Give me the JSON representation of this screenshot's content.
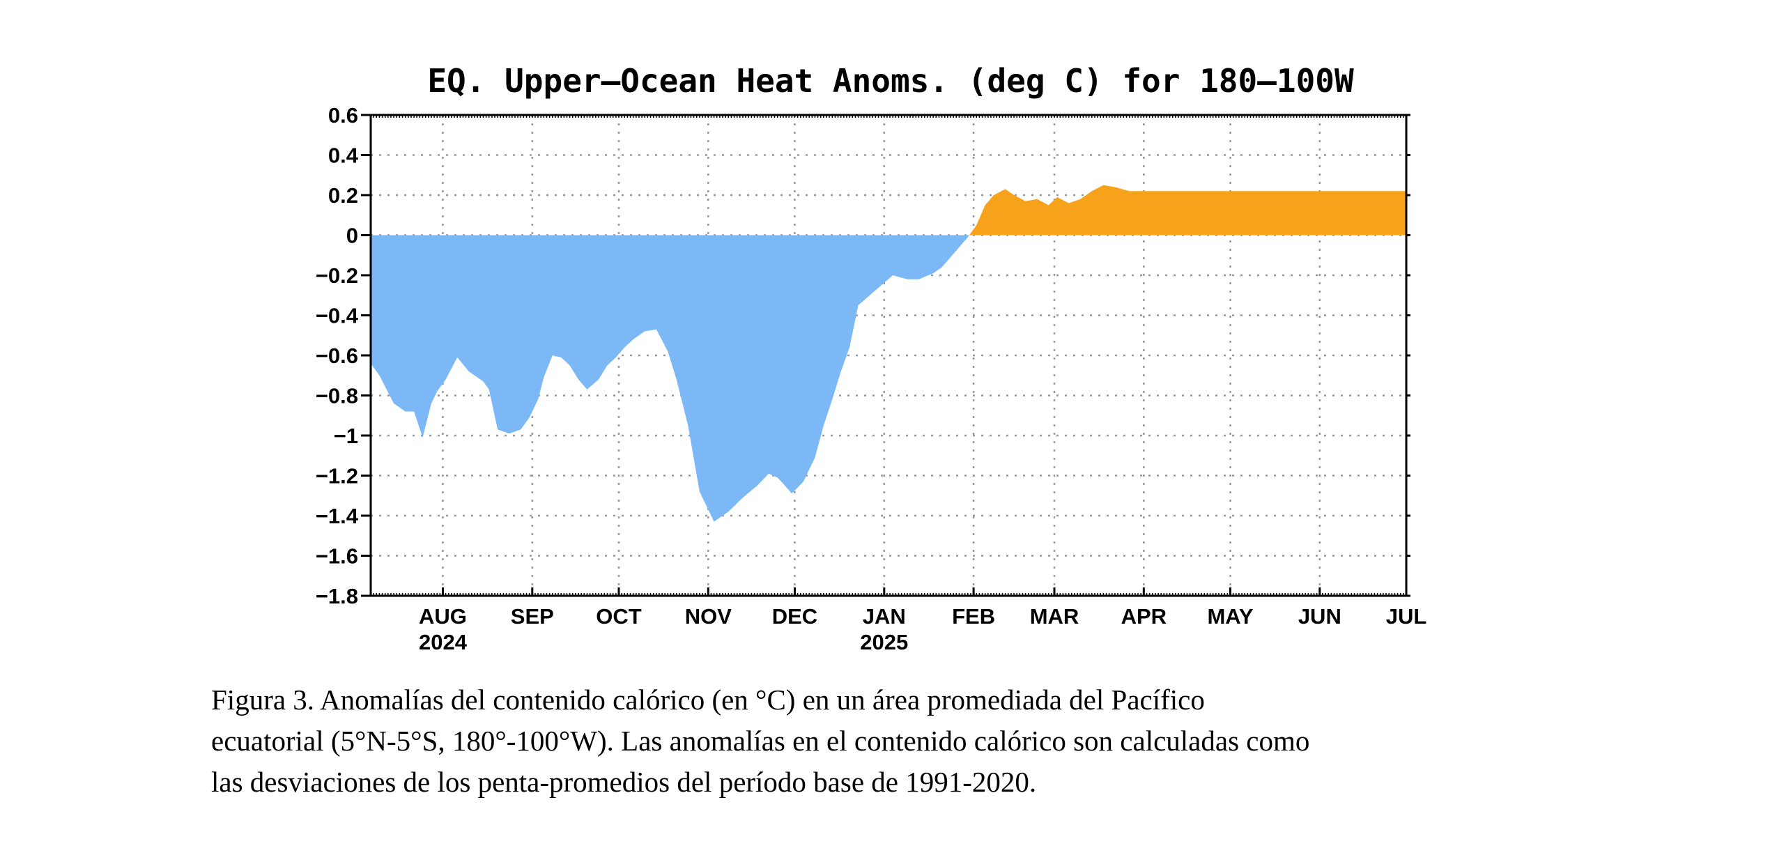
{
  "chart_data": {
    "type": "area",
    "title": "EQ. Upper–Ocean Heat Anoms. (deg C) for 180–100W",
    "xlabel": "",
    "ylabel": "",
    "ylim": [
      -1.8,
      0.6
    ],
    "y_ticks": [
      "0.6",
      "0.4",
      "0.2",
      "0",
      "−0.2",
      "−0.4",
      "−0.6",
      "−0.8",
      "−1",
      "−1.2",
      "−1.4",
      "−1.6",
      "−1.8"
    ],
    "x_range": [
      "2024-07-07",
      "2025-07-01"
    ],
    "x_ticks": [
      {
        "date": "2024-08-01",
        "label": "AUG",
        "year": "2024"
      },
      {
        "date": "2024-09-01",
        "label": "SEP",
        "year": ""
      },
      {
        "date": "2024-10-01",
        "label": "OCT",
        "year": ""
      },
      {
        "date": "2024-11-01",
        "label": "NOV",
        "year": ""
      },
      {
        "date": "2024-12-01",
        "label": "DEC",
        "year": ""
      },
      {
        "date": "2025-01-01",
        "label": "JAN",
        "year": "2025"
      },
      {
        "date": "2025-02-01",
        "label": "FEB",
        "year": ""
      },
      {
        "date": "2025-03-01",
        "label": "MAR",
        "year": ""
      },
      {
        "date": "2025-04-01",
        "label": "APR",
        "year": ""
      },
      {
        "date": "2025-05-01",
        "label": "MAY",
        "year": ""
      },
      {
        "date": "2025-06-01",
        "label": "JUN",
        "year": ""
      },
      {
        "date": "2025-07-01",
        "label": "JUL",
        "year": ""
      }
    ],
    "grid": true,
    "colors": {
      "negative": "#7bb8f5",
      "positive": "#f7a21b",
      "grid": "#999999"
    },
    "series": [
      {
        "x": [
          "2024-07-07",
          "2024-07-10",
          "2024-07-15",
          "2024-07-19",
          "2024-07-22",
          "2024-07-25",
          "2024-07-28",
          "2024-07-30",
          "2024-08-02",
          "2024-08-06",
          "2024-08-10",
          "2024-08-13",
          "2024-08-15",
          "2024-08-17",
          "2024-08-20",
          "2024-08-24",
          "2024-08-28",
          "2024-08-31",
          "2024-09-03",
          "2024-09-05",
          "2024-09-08",
          "2024-09-11",
          "2024-09-14",
          "2024-09-17",
          "2024-09-20",
          "2024-09-24",
          "2024-09-27",
          "2024-09-30",
          "2024-10-03",
          "2024-10-06",
          "2024-10-10",
          "2024-10-14",
          "2024-10-18",
          "2024-10-21",
          "2024-10-25",
          "2024-10-29",
          "2024-11-03",
          "2024-11-08",
          "2024-11-13",
          "2024-11-18",
          "2024-11-22",
          "2024-11-25",
          "2024-11-27",
          "2024-11-30",
          "2024-12-04",
          "2024-12-08",
          "2024-12-11",
          "2024-12-14",
          "2024-12-17",
          "2024-12-20",
          "2024-12-23",
          "2024-12-27",
          "2024-12-31",
          "2025-01-04",
          "2025-01-09",
          "2025-01-13",
          "2025-01-18",
          "2025-01-21",
          "2025-01-24",
          "2025-01-27",
          "2025-01-30",
          "2025-02-02",
          "2025-02-05",
          "2025-02-08",
          "2025-02-12",
          "2025-02-15",
          "2025-02-19",
          "2025-02-23",
          "2025-02-27",
          "2025-03-02",
          "2025-03-06",
          "2025-03-10",
          "2025-03-14",
          "2025-03-18",
          "2025-03-22",
          "2025-03-27",
          "2025-04-01",
          "2025-04-06",
          "2025-04-10",
          "2025-04-14",
          "2025-04-17",
          "2025-04-20",
          "2025-04-23",
          "2025-04-26",
          "2025-04-29",
          "2025-05-01",
          "2025-05-04",
          "2025-05-08",
          "2025-05-12",
          "2025-05-15",
          "2025-05-19",
          "2025-05-22",
          "2025-05-25",
          "2025-05-28",
          "2025-05-31",
          "2025-06-03",
          "2025-06-06",
          "2025-06-10",
          "2025-06-14",
          "2025-06-17",
          "2025-06-21",
          "2025-06-25",
          "2025-06-28",
          "2025-07-01"
        ],
        "values": [
          -0.64,
          -0.7,
          -0.84,
          -0.88,
          -0.88,
          -1.01,
          -0.84,
          -0.78,
          -0.72,
          -0.61,
          -0.68,
          -0.71,
          -0.73,
          -0.77,
          -0.97,
          -0.99,
          -0.97,
          -0.91,
          -0.82,
          -0.71,
          -0.6,
          -0.61,
          -0.65,
          -0.72,
          -0.77,
          -0.72,
          -0.65,
          -0.61,
          -0.56,
          -0.52,
          -0.48,
          -0.47,
          -0.58,
          -0.72,
          -0.95,
          -1.28,
          -1.43,
          -1.38,
          -1.31,
          -1.25,
          -1.19,
          -1.21,
          -1.24,
          -1.29,
          -1.23,
          -1.11,
          -0.95,
          -0.82,
          -0.68,
          -0.56,
          -0.35,
          -0.3,
          -0.25,
          -0.2,
          -0.22,
          -0.22,
          -0.19,
          -0.16,
          -0.11,
          -0.06,
          -0.01,
          0.05,
          0.15,
          0.2,
          0.23,
          0.2,
          0.17,
          0.18,
          0.15,
          0.19,
          0.16,
          0.18,
          0.22,
          0.25,
          0.24,
          0.22,
          0.22,
          0.22,
          0.22,
          0.22,
          0.22,
          0.22,
          0.22,
          0.22,
          0.22,
          0.22,
          0.22,
          0.22,
          0.22,
          0.22,
          0.22,
          0.22,
          0.22,
          0.22,
          0.22,
          0.22,
          0.22,
          0.22,
          0.22,
          0.22,
          0.22,
          0.22,
          0.22,
          0.22
        ]
      }
    ]
  },
  "caption": {
    "line1": "Figura 3. Anomalías del contenido calórico (en °C) en un área promediada del Pacífico",
    "line2": "ecuatorial (5°N-5°S, 180°-100°W). Las anomalías en el contenido calórico son calculadas como",
    "line3": "las desviaciones de los penta-promedios del período base de 1991-2020."
  }
}
